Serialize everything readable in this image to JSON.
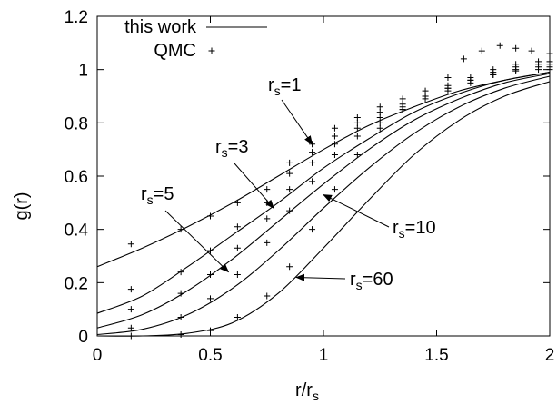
{
  "chart_data": {
    "type": "line",
    "xlabel": "r/r",
    "xlabel_sub": "s",
    "ylabel": "g(r)",
    "xlim": [
      0,
      2
    ],
    "ylim": [
      0,
      1.2
    ],
    "xticks": [
      0,
      0.5,
      1,
      1.5,
      2
    ],
    "xtick_labels": [
      "0",
      "0.5",
      "1",
      "1.5",
      "2"
    ],
    "yticks": [
      0,
      0.2,
      0.4,
      0.6,
      0.8,
      1,
      1.2
    ],
    "ytick_labels": [
      "0",
      "0.2",
      "0.4",
      "0.6",
      "0.8",
      "1",
      "1.2"
    ],
    "grid": false,
    "legend": {
      "position": "top-left",
      "entries": [
        {
          "label": "this work",
          "style": "line"
        },
        {
          "label": "QMC",
          "style": "plus"
        }
      ]
    },
    "lines": [
      {
        "rs": 1,
        "x": [
          0,
          0.2,
          0.4,
          0.6,
          0.8,
          1.0,
          1.2,
          1.4,
          1.6,
          1.8,
          2.0
        ],
        "y": [
          0.26,
          0.33,
          0.41,
          0.5,
          0.6,
          0.7,
          0.79,
          0.86,
          0.92,
          0.96,
          0.99
        ]
      },
      {
        "rs": 3,
        "x": [
          0,
          0.2,
          0.4,
          0.6,
          0.8,
          1.0,
          1.2,
          1.4,
          1.6,
          1.8,
          2.0
        ],
        "y": [
          0.085,
          0.15,
          0.26,
          0.38,
          0.5,
          0.63,
          0.74,
          0.84,
          0.91,
          0.96,
          0.99
        ]
      },
      {
        "rs": 5,
        "x": [
          0,
          0.2,
          0.4,
          0.6,
          0.8,
          1.0,
          1.2,
          1.4,
          1.6,
          1.8,
          2.0
        ],
        "y": [
          0.03,
          0.08,
          0.17,
          0.29,
          0.43,
          0.57,
          0.7,
          0.81,
          0.89,
          0.95,
          0.985
        ]
      },
      {
        "rs": 10,
        "x": [
          0,
          0.2,
          0.4,
          0.6,
          0.8,
          1.0,
          1.2,
          1.4,
          1.6,
          1.8,
          2.0
        ],
        "y": [
          0.005,
          0.025,
          0.08,
          0.18,
          0.32,
          0.48,
          0.63,
          0.76,
          0.86,
          0.93,
          0.975
        ]
      },
      {
        "rs": 60,
        "x": [
          0,
          0.2,
          0.4,
          0.6,
          0.8,
          1.0,
          1.2,
          1.4,
          1.6,
          1.8,
          2.0
        ],
        "y": [
          0.0,
          0.0,
          0.01,
          0.05,
          0.16,
          0.33,
          0.51,
          0.68,
          0.81,
          0.9,
          0.955
        ]
      }
    ],
    "qmc": [
      {
        "rs": 1,
        "x": [
          0.15,
          0.37,
          0.5,
          0.62,
          0.75,
          0.85,
          0.95,
          1.05,
          1.15,
          1.25,
          1.35,
          1.45,
          1.55,
          1.62,
          1.7,
          1.78,
          1.85,
          1.92,
          2.0
        ],
        "y": [
          0.345,
          0.4,
          0.45,
          0.5,
          0.55,
          0.65,
          0.72,
          0.78,
          0.82,
          0.86,
          0.89,
          0.92,
          0.97,
          1.04,
          1.07,
          1.09,
          1.08,
          1.07,
          1.06
        ]
      },
      {
        "rs": 3,
        "x": [
          0.15,
          0.37,
          0.5,
          0.62,
          0.75,
          0.85,
          0.95,
          1.05,
          1.15,
          1.25,
          1.35,
          1.45,
          1.55,
          1.65,
          1.75,
          1.85,
          1.95,
          2.0
        ],
        "y": [
          0.175,
          0.24,
          0.32,
          0.41,
          0.5,
          0.61,
          0.69,
          0.75,
          0.8,
          0.84,
          0.87,
          0.9,
          0.94,
          0.97,
          1.0,
          1.02,
          1.03,
          1.03
        ]
      },
      {
        "rs": 5,
        "x": [
          0.15,
          0.37,
          0.5,
          0.62,
          0.75,
          0.85,
          0.95,
          1.05,
          1.15,
          1.25,
          1.35,
          1.45,
          1.55,
          1.65,
          1.75,
          1.85,
          1.95,
          2.0
        ],
        "y": [
          0.1,
          0.16,
          0.23,
          0.33,
          0.44,
          0.55,
          0.65,
          0.72,
          0.78,
          0.82,
          0.86,
          0.9,
          0.93,
          0.96,
          0.99,
          1.01,
          1.02,
          1.02
        ]
      },
      {
        "rs": 10,
        "x": [
          0.15,
          0.37,
          0.5,
          0.62,
          0.75,
          0.85,
          0.95,
          1.05,
          1.15,
          1.25,
          1.35,
          1.45,
          1.55,
          1.65,
          1.75,
          1.85,
          1.95,
          2.0
        ],
        "y": [
          0.03,
          0.07,
          0.14,
          0.23,
          0.35,
          0.47,
          0.58,
          0.68,
          0.75,
          0.8,
          0.85,
          0.89,
          0.92,
          0.95,
          0.98,
          1.0,
          1.01,
          1.01
        ]
      },
      {
        "rs": 60,
        "x": [
          0.15,
          0.37,
          0.5,
          0.62,
          0.75,
          0.85,
          0.95,
          1.05,
          1.15,
          1.25,
          1.35,
          1.45,
          1.55,
          1.65,
          1.75,
          1.85,
          1.95,
          2.0
        ],
        "y": [
          0.0,
          0.005,
          0.02,
          0.07,
          0.15,
          0.26,
          0.4,
          0.55,
          0.68,
          0.78,
          0.85,
          0.9,
          0.93,
          0.96,
          0.98,
          0.995,
          1.0,
          1.0
        ]
      }
    ],
    "annotations": [
      {
        "name": "rs-1",
        "prefix": "r",
        "sub": "s",
        "suffix": "=1",
        "point": [
          0.95,
          0.72
        ]
      },
      {
        "name": "rs-3",
        "prefix": "r",
        "sub": "s",
        "suffix": "=3",
        "point": [
          0.78,
          0.48
        ]
      },
      {
        "name": "rs-5",
        "prefix": "r",
        "sub": "s",
        "suffix": "=5",
        "point": [
          0.58,
          0.24
        ]
      },
      {
        "name": "rs-10",
        "prefix": "r",
        "sub": "s",
        "suffix": "=10",
        "point": [
          1.0,
          0.53
        ]
      },
      {
        "name": "rs-60",
        "prefix": "r",
        "sub": "s",
        "suffix": "=60",
        "point": [
          0.88,
          0.22
        ]
      }
    ]
  }
}
